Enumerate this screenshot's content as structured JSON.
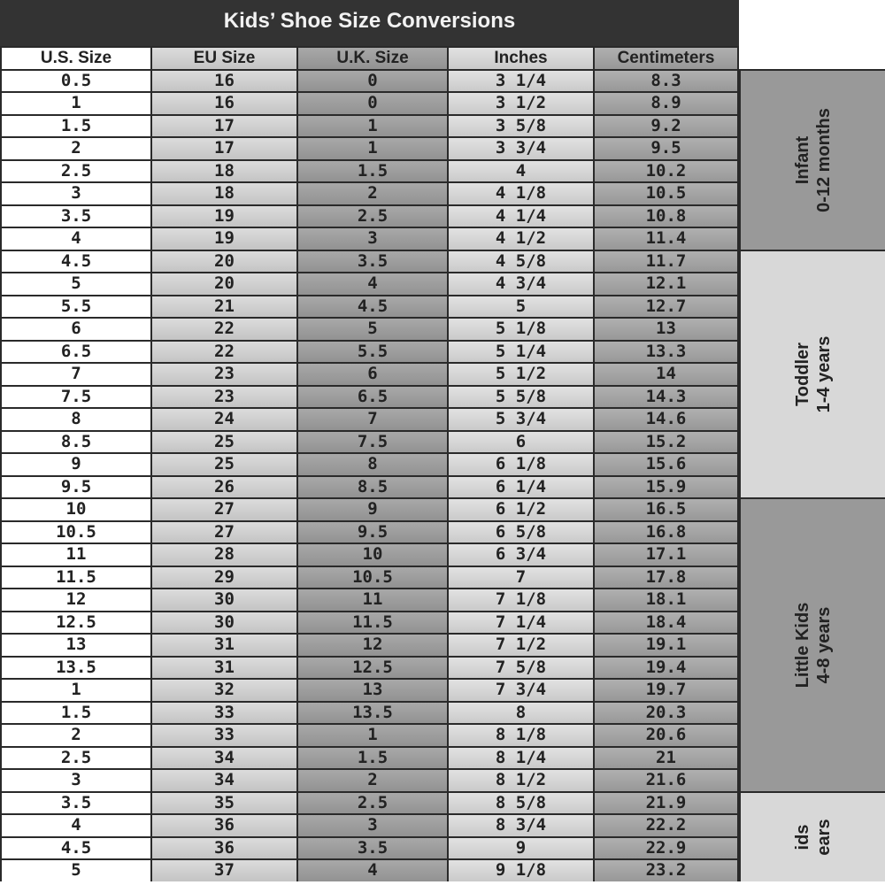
{
  "title": "Kids’ Shoe Size Conversions",
  "headers": [
    "U.S. Size",
    "EU Size",
    "U.K. Size",
    "Inches",
    "Centimeters"
  ],
  "rows": [
    [
      "0.5",
      "16",
      "0",
      "3 1/4",
      "8.3"
    ],
    [
      "1",
      "16",
      "0",
      "3 1/2",
      "8.9"
    ],
    [
      "1.5",
      "17",
      "1",
      "3 5/8",
      "9.2"
    ],
    [
      "2",
      "17",
      "1",
      "3 3/4",
      "9.5"
    ],
    [
      "2.5",
      "18",
      "1.5",
      "4",
      "10.2"
    ],
    [
      "3",
      "18",
      "2",
      "4 1/8",
      "10.5"
    ],
    [
      "3.5",
      "19",
      "2.5",
      "4 1/4",
      "10.8"
    ],
    [
      "4",
      "19",
      "3",
      "4 1/2",
      "11.4"
    ],
    [
      "4.5",
      "20",
      "3.5",
      "4 5/8",
      "11.7"
    ],
    [
      "5",
      "20",
      "4",
      "4 3/4",
      "12.1"
    ],
    [
      "5.5",
      "21",
      "4.5",
      "5",
      "12.7"
    ],
    [
      "6",
      "22",
      "5",
      "5 1/8",
      "13"
    ],
    [
      "6.5",
      "22",
      "5.5",
      "5 1/4",
      "13.3"
    ],
    [
      "7",
      "23",
      "6",
      "5 1/2",
      "14"
    ],
    [
      "7.5",
      "23",
      "6.5",
      "5 5/8",
      "14.3"
    ],
    [
      "8",
      "24",
      "7",
      "5 3/4",
      "14.6"
    ],
    [
      "8.5",
      "25",
      "7.5",
      "6",
      "15.2"
    ],
    [
      "9",
      "25",
      "8",
      "6 1/8",
      "15.6"
    ],
    [
      "9.5",
      "26",
      "8.5",
      "6 1/4",
      "15.9"
    ],
    [
      "10",
      "27",
      "9",
      "6 1/2",
      "16.5"
    ],
    [
      "10.5",
      "27",
      "9.5",
      "6 5/8",
      "16.8"
    ],
    [
      "11",
      "28",
      "10",
      "6 3/4",
      "17.1"
    ],
    [
      "11.5",
      "29",
      "10.5",
      "7",
      "17.8"
    ],
    [
      "12",
      "30",
      "11",
      "7 1/8",
      "18.1"
    ],
    [
      "12.5",
      "30",
      "11.5",
      "7 1/4",
      "18.4"
    ],
    [
      "13",
      "31",
      "12",
      "7 1/2",
      "19.1"
    ],
    [
      "13.5",
      "31",
      "12.5",
      "7 5/8",
      "19.4"
    ],
    [
      "1",
      "32",
      "13",
      "7 3/4",
      "19.7"
    ],
    [
      "1.5",
      "33",
      "13.5",
      "8",
      "20.3"
    ],
    [
      "2",
      "33",
      "1",
      "8 1/8",
      "20.6"
    ],
    [
      "2.5",
      "34",
      "1.5",
      "8 1/4",
      "21"
    ],
    [
      "3",
      "34",
      "2",
      "8 1/2",
      "21.6"
    ],
    [
      "3.5",
      "35",
      "2.5",
      "8 5/8",
      "21.9"
    ],
    [
      "4",
      "36",
      "3",
      "8 3/4",
      "22.2"
    ],
    [
      "4.5",
      "36",
      "3.5",
      "9",
      "22.9"
    ],
    [
      "5",
      "37",
      "4",
      "9 1/8",
      "23.2"
    ]
  ],
  "groups": [
    {
      "name": "Infant",
      "ages": "0-12 months",
      "rows": 8,
      "shade": "dark"
    },
    {
      "name": "Toddler",
      "ages": "1-4 years",
      "rows": 11,
      "shade": "light"
    },
    {
      "name": "Little Kids",
      "ages": "4-8 years",
      "rows": 13,
      "shade": "dark"
    },
    {
      "name": "ids",
      "ages": "ears",
      "rows": 4,
      "shade": "light"
    }
  ],
  "colors": {
    "title_bar": "#333333",
    "dark_cell": "#999999",
    "light_cell": "#d8d8d8"
  }
}
